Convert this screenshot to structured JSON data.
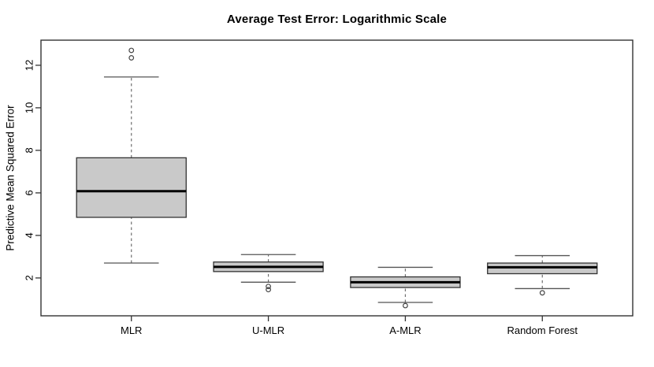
{
  "window": {
    "title": "Average Test Error: Logarithmic Scale"
  },
  "chart_data": {
    "type": "boxplot",
    "title": "Average Test Error: Logarithmic Scale",
    "xlabel": "",
    "ylabel": "Predictive Mean Squared Error",
    "categories": [
      "MLR",
      "U-MLR",
      "A-MLR",
      "Random Forest"
    ],
    "yticks": [
      2,
      4,
      6,
      8,
      10,
      12
    ],
    "ylim": [
      0.22,
      13.18
    ],
    "grid": false,
    "legend": "none",
    "series": [
      {
        "name": "MLR",
        "whisker_low": 2.7,
        "q1": 4.85,
        "median": 6.08,
        "q3": 7.65,
        "whisker_high": 11.45,
        "outliers": [
          12.35,
          12.7
        ]
      },
      {
        "name": "U-MLR",
        "whisker_low": 1.8,
        "q1": 2.3,
        "median": 2.52,
        "q3": 2.75,
        "whisker_high": 3.1,
        "outliers": [
          1.45,
          1.6
        ]
      },
      {
        "name": "A-MLR",
        "whisker_low": 0.85,
        "q1": 1.55,
        "median": 1.8,
        "q3": 2.05,
        "whisker_high": 2.5,
        "outliers": [
          0.7
        ]
      },
      {
        "name": "Random Forest",
        "whisker_low": 1.5,
        "q1": 2.2,
        "median": 2.5,
        "q3": 2.7,
        "whisker_high": 3.05,
        "outliers": [
          1.3
        ]
      }
    ],
    "colors": {
      "background": "#FFFFFF",
      "box_fill": "#C9C9C9",
      "box_border": "#333333",
      "median_line": "#000000",
      "whisker_dash": "#707070",
      "whisker_cap": "#555555",
      "axis_line": "#333333",
      "outlier_stroke": "#444444"
    }
  }
}
